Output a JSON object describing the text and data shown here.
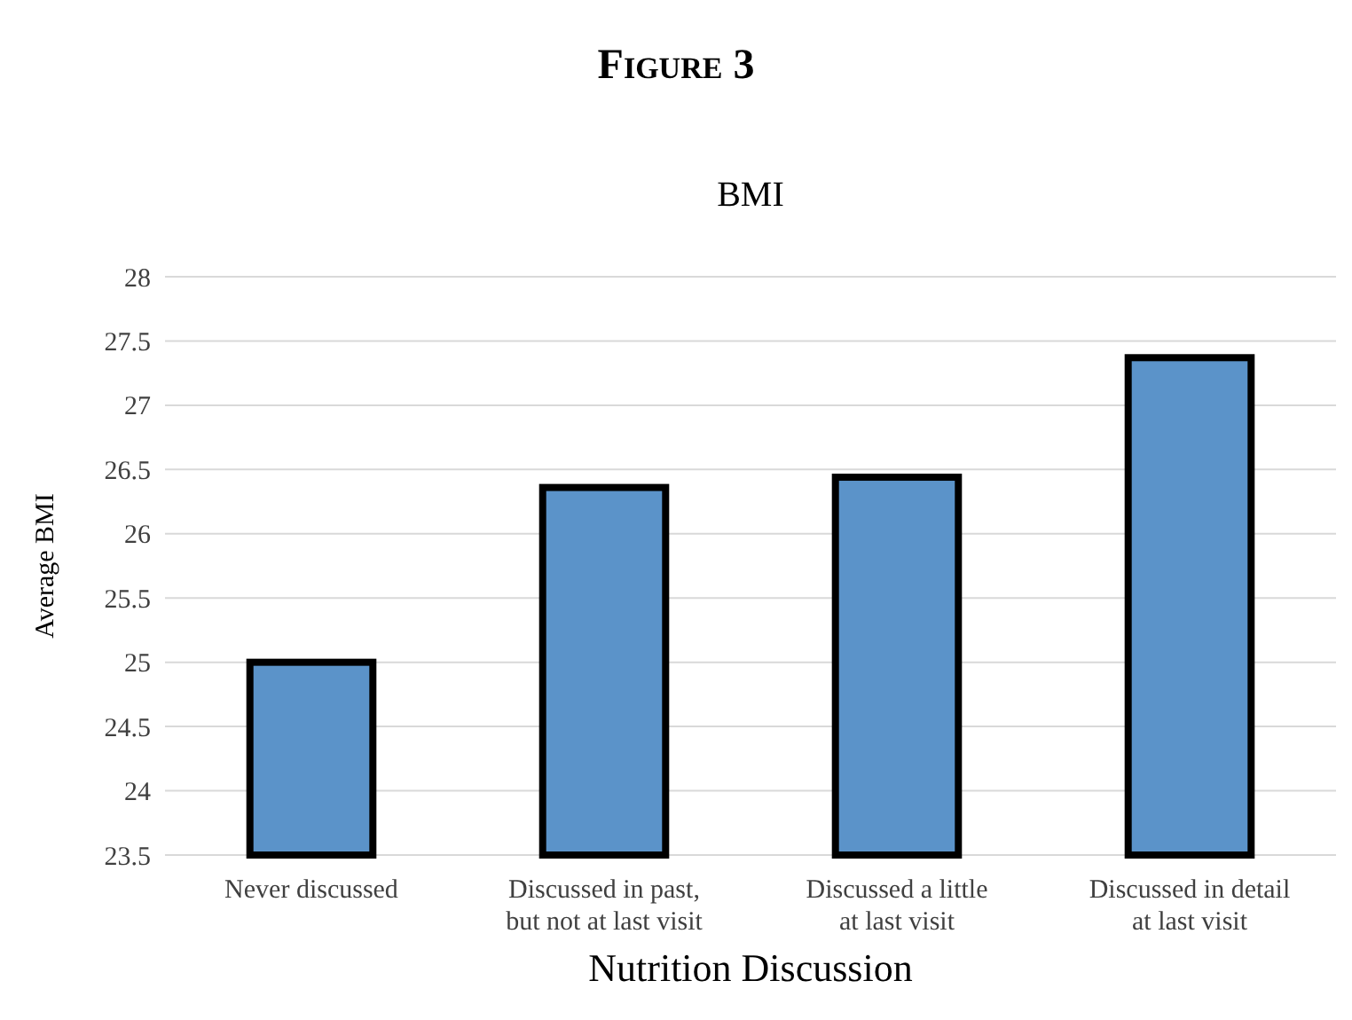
{
  "chart_data": {
    "type": "bar",
    "title": "Figure 3",
    "subtitle": "BMI",
    "xlabel": "Nutrition Discussion",
    "ylabel": "Average BMI",
    "categories": [
      "Never discussed",
      "Discussed in past,\nbut not at last visit",
      "Discussed a little\nat last visit",
      "Discussed in detail\nat last visit"
    ],
    "values": [
      25.0,
      26.36,
      26.44,
      27.37
    ],
    "color": "#5b93c9",
    "ylim": [
      23.5,
      28
    ],
    "yticks": [
      23.5,
      24,
      24.5,
      25,
      25.5,
      26,
      26.5,
      27,
      27.5,
      28
    ],
    "grid": "y"
  }
}
